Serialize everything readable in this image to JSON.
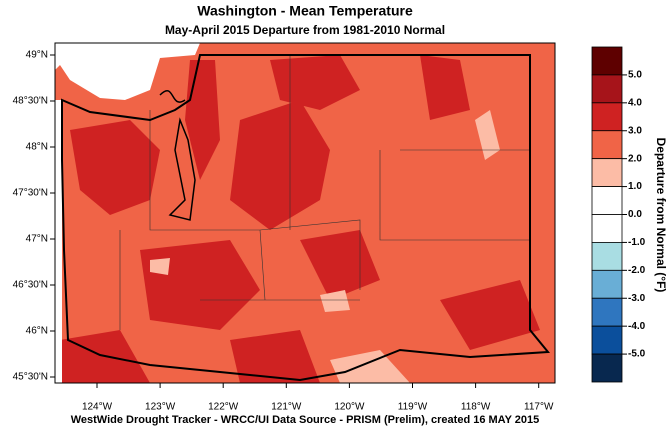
{
  "title": "Washington - Mean Temperature",
  "subtitle": "May-April 2015  Departure from 1981-2010 Normal",
  "latitude_labels": [
    "49°N",
    "48°30'N",
    "48°N",
    "47°30'N",
    "47°N",
    "46°30'N",
    "46°N",
    "45°30'N"
  ],
  "longitude_labels": [
    "124°W",
    "123°W",
    "122°W",
    "121°W",
    "120°W",
    "119°W",
    "118°W",
    "117°W"
  ],
  "legend": {
    "title": "Departure from Normal (°F)",
    "ticks": [
      {
        "value": 5,
        "label": "5.0"
      },
      {
        "value": 4,
        "label": "4.0"
      },
      {
        "value": 3,
        "label": "3.0"
      },
      {
        "value": 2,
        "label": "2.0"
      },
      {
        "value": 1,
        "label": "1.0"
      },
      {
        "value": 0,
        "label": "0.0"
      },
      {
        "value": -1,
        "label": "-1.0"
      },
      {
        "value": -2,
        "label": "-2.0"
      },
      {
        "value": -3,
        "label": "-3.0"
      },
      {
        "value": -4,
        "label": "-4.0"
      },
      {
        "value": -5,
        "label": "-5.0"
      }
    ],
    "colors": [
      "#5e0000",
      "#a6141a",
      "#cf2222",
      "#f06447",
      "#fcbca6",
      "#ffffff",
      "#ffffff",
      "#a9dde3",
      "#69aed6",
      "#2f76bf",
      "#0b4f9c",
      "#08284f"
    ]
  },
  "footer": "WestWide Drought Tracker - WRCC/UI  Data Source - PRISM (Prelim), created 16 MAY 2015"
}
